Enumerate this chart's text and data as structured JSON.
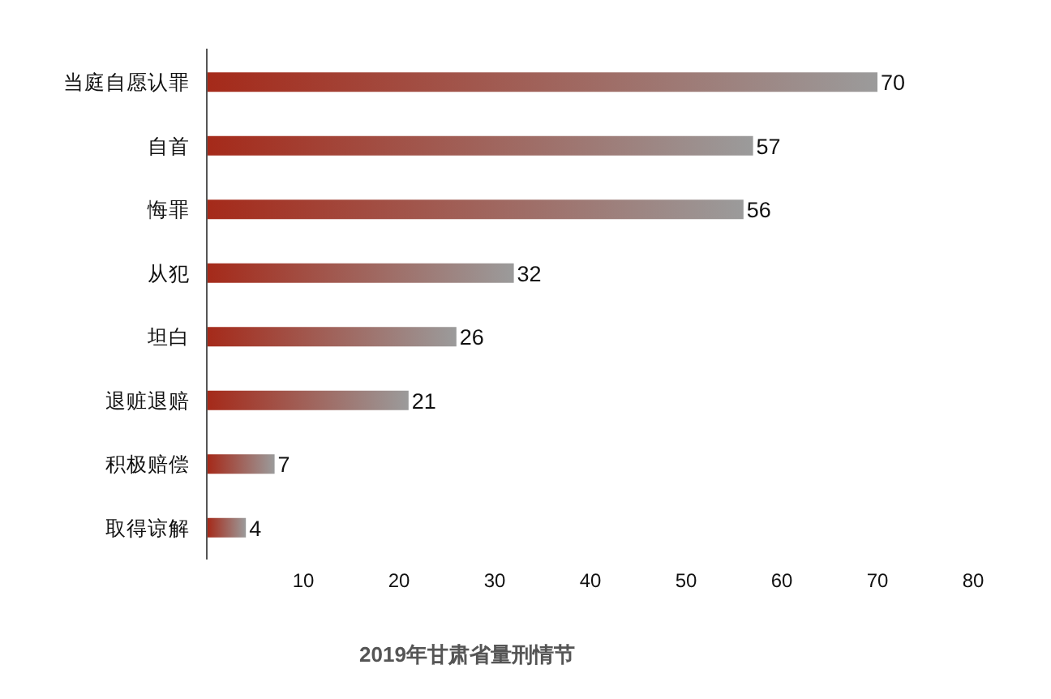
{
  "chart_data": {
    "type": "bar",
    "orientation": "horizontal",
    "title": "2019年甘肃省量刑情节",
    "categories": [
      "当庭自愿认罪",
      "自首",
      "悔罪",
      "从犯",
      "坦白",
      "退赃退赔",
      "积极赔偿",
      "取得谅解"
    ],
    "values": [
      70,
      57,
      56,
      32,
      26,
      21,
      7,
      4
    ],
    "color": "#a52a1a",
    "data_labels": true,
    "xlim": [
      0,
      80
    ],
    "xticks": [
      10,
      20,
      30,
      40,
      50,
      60,
      70,
      80
    ]
  }
}
